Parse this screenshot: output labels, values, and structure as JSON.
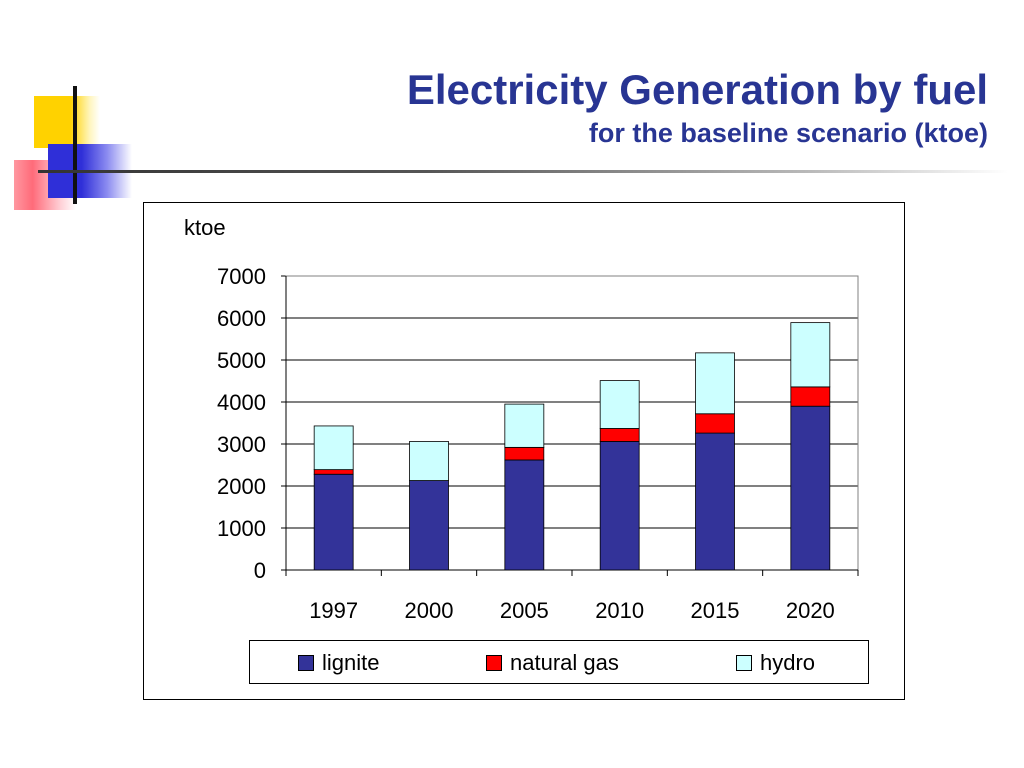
{
  "slide": {
    "title": "Electricity Generation by fuel",
    "subtitle": "for the baseline scenario (ktoe)"
  },
  "colors": {
    "title": "#283593",
    "lignite": "#333399",
    "natural_gas": "#ff0000",
    "hydro": "#ccffff"
  },
  "chart_data": {
    "type": "bar",
    "stacked": true,
    "ylabel": "ktoe",
    "categories": [
      "1997",
      "2000",
      "2005",
      "2010",
      "2015",
      "2020"
    ],
    "series": [
      {
        "name": "lignite",
        "color": "#333399",
        "values": [
          2280,
          2130,
          2620,
          3060,
          3260,
          3900
        ]
      },
      {
        "name": "natural gas",
        "color": "#ff0000",
        "values": [
          110,
          0,
          300,
          310,
          460,
          460
        ]
      },
      {
        "name": "hydro",
        "color": "#ccffff",
        "values": [
          1040,
          930,
          1030,
          1140,
          1450,
          1530
        ]
      }
    ],
    "ylim": [
      0,
      7000
    ],
    "yticks": [
      0,
      1000,
      2000,
      3000,
      4000,
      5000,
      6000,
      7000
    ],
    "grid": true,
    "legend_position": "bottom"
  }
}
